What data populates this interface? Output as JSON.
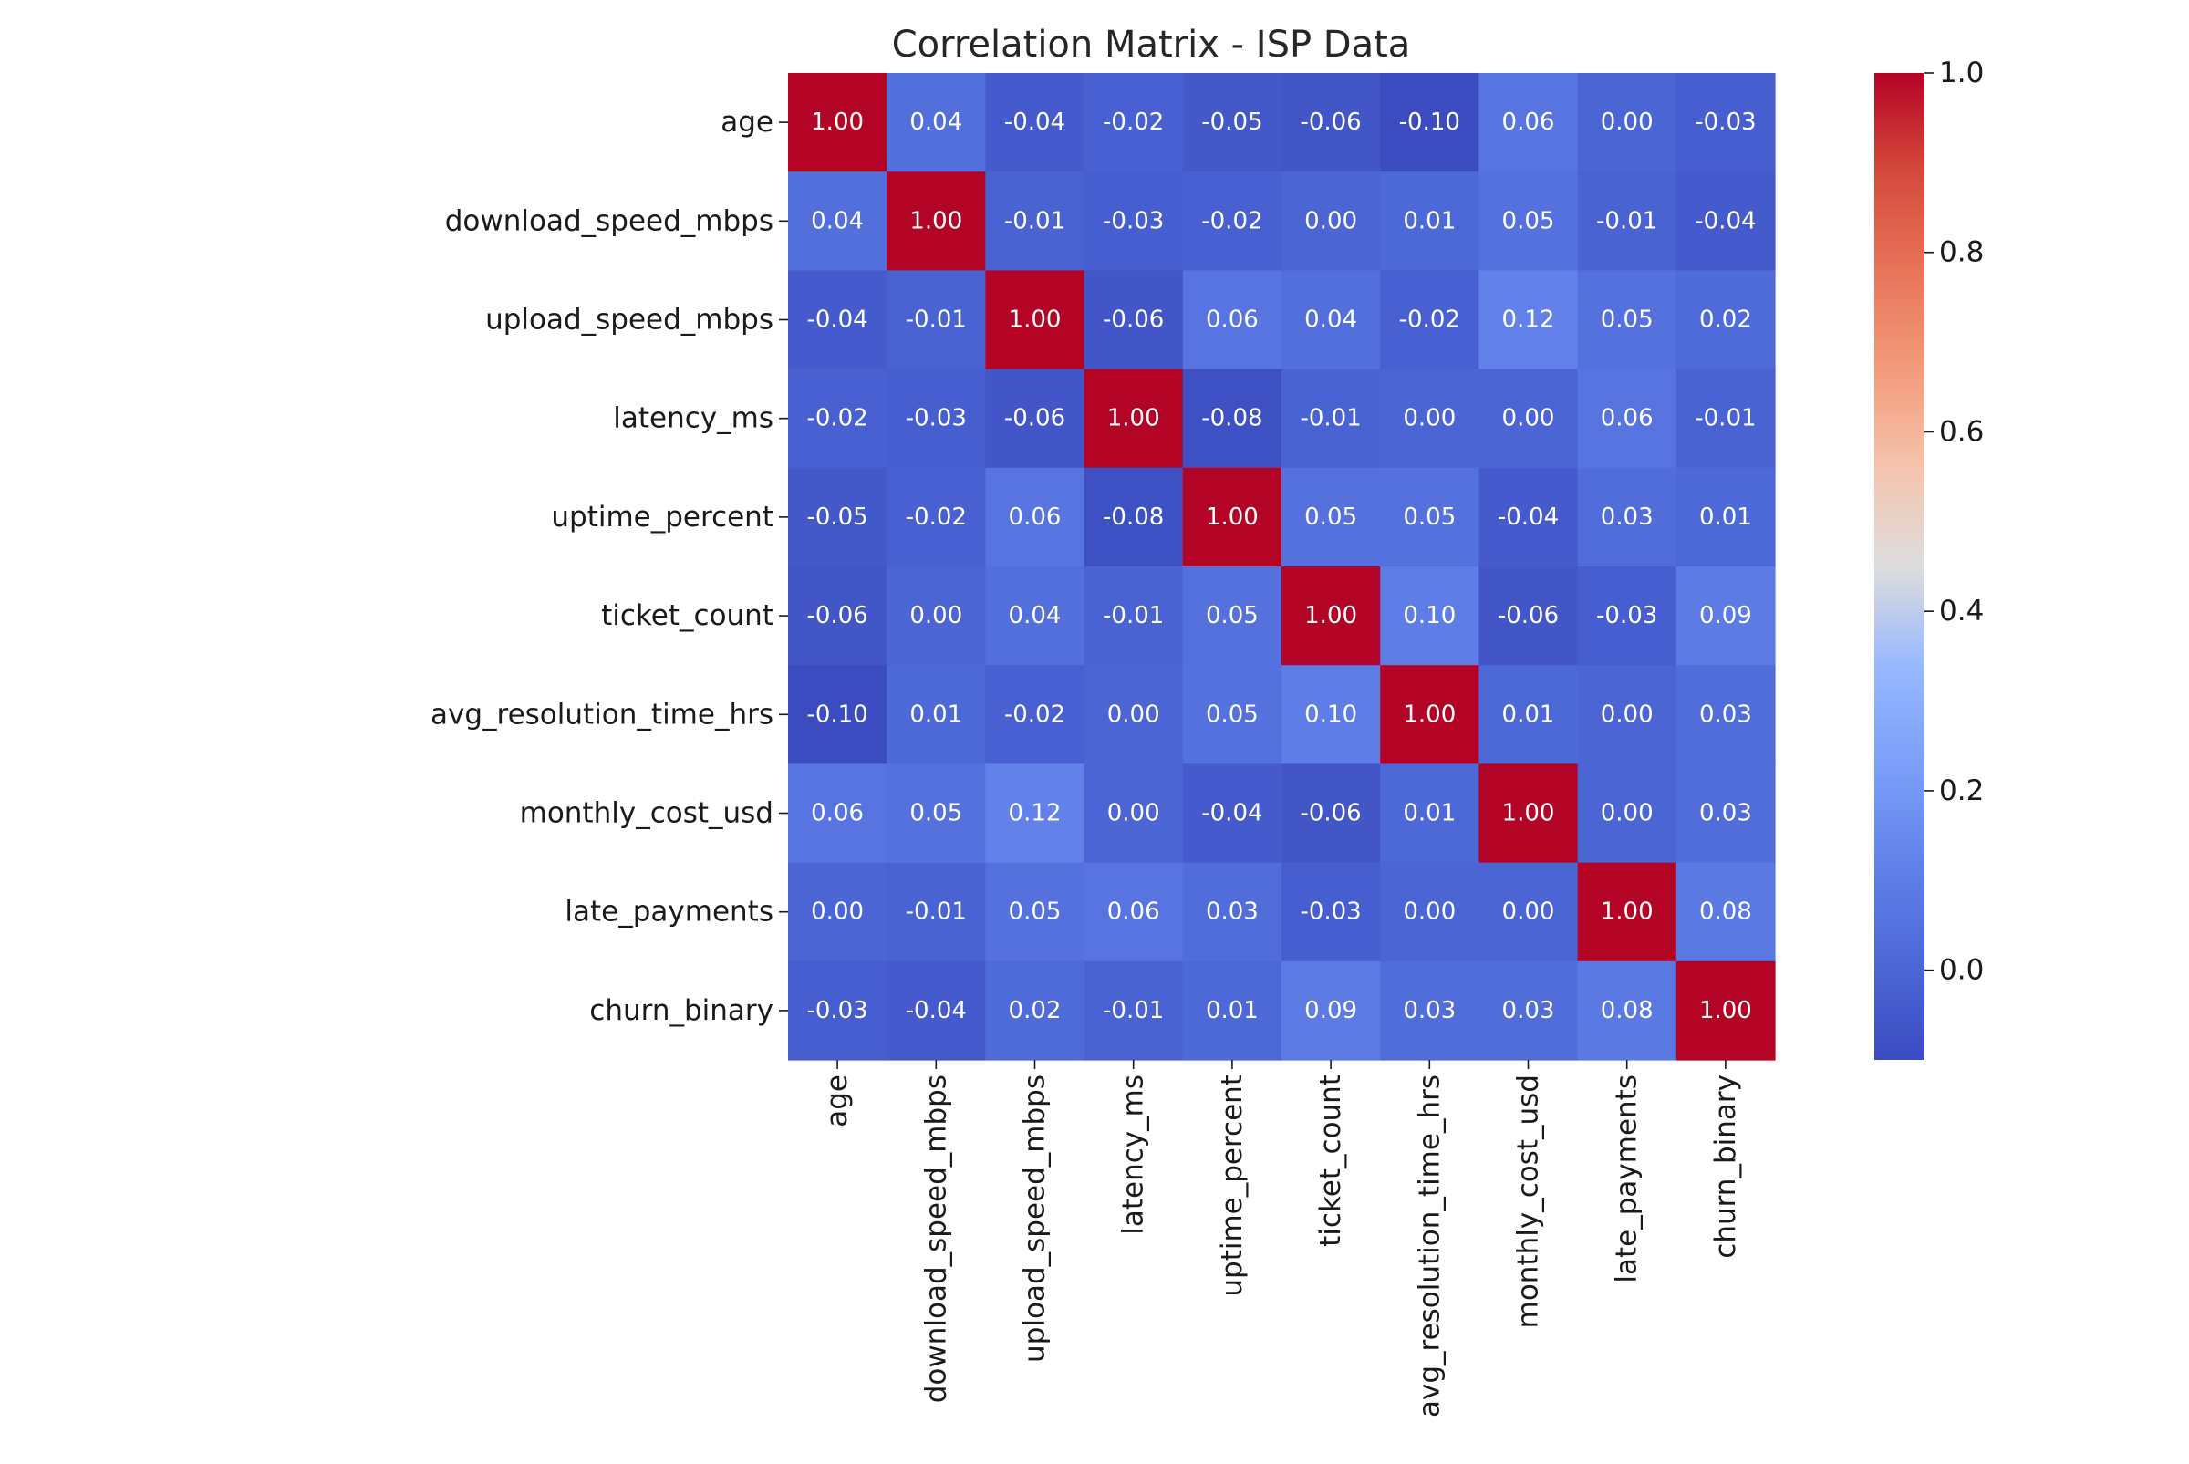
{
  "chart_data": {
    "type": "heatmap",
    "title": "Correlation Matrix - ISP Data",
    "xlabel": "",
    "ylabel": "",
    "row_labels": [
      "age",
      "download_speed_mbps",
      "upload_speed_mbps",
      "latency_ms",
      "uptime_percent",
      "ticket_count",
      "avg_resolution_time_hrs",
      "monthly_cost_usd",
      "late_payments",
      "churn_binary"
    ],
    "col_labels": [
      "age",
      "download_speed_mbps",
      "upload_speed_mbps",
      "latency_ms",
      "uptime_percent",
      "ticket_count",
      "avg_resolution_time_hrs",
      "monthly_cost_usd",
      "late_payments",
      "churn_binary"
    ],
    "values": [
      [
        1.0,
        0.04,
        -0.04,
        -0.02,
        -0.05,
        -0.06,
        -0.1,
        0.06,
        -0.0,
        -0.03
      ],
      [
        0.04,
        1.0,
        -0.01,
        -0.03,
        -0.02,
        -0.0,
        0.01,
        0.05,
        -0.01,
        -0.04
      ],
      [
        -0.04,
        -0.01,
        1.0,
        -0.06,
        0.06,
        0.04,
        -0.02,
        0.12,
        0.05,
        0.02
      ],
      [
        -0.02,
        -0.03,
        -0.06,
        1.0,
        -0.08,
        -0.01,
        -0.0,
        -0.0,
        0.06,
        -0.01
      ],
      [
        -0.05,
        -0.02,
        0.06,
        -0.08,
        1.0,
        0.05,
        0.05,
        -0.04,
        0.03,
        0.01
      ],
      [
        -0.06,
        -0.0,
        0.04,
        -0.01,
        0.05,
        1.0,
        0.1,
        -0.06,
        -0.03,
        0.09
      ],
      [
        -0.1,
        0.01,
        -0.02,
        -0.0,
        0.05,
        0.1,
        1.0,
        0.01,
        -0.0,
        0.03
      ],
      [
        0.06,
        0.05,
        0.12,
        -0.0,
        -0.04,
        -0.06,
        0.01,
        1.0,
        -0.0,
        0.03
      ],
      [
        -0.0,
        -0.01,
        0.05,
        0.06,
        0.03,
        -0.03,
        -0.0,
        -0.0,
        1.0,
        0.08
      ],
      [
        -0.03,
        -0.04,
        0.02,
        -0.01,
        0.01,
        0.09,
        0.03,
        0.03,
        0.08,
        1.0
      ]
    ],
    "annotation_format": "2 decimals",
    "colormap": "coolwarm",
    "color_range": [
      -0.1,
      1.0
    ],
    "colorbar_ticks": [
      0.0,
      0.2,
      0.4,
      0.6,
      0.8,
      1.0
    ],
    "colorbar_tick_labels": [
      "0.0",
      "0.2",
      "0.4",
      "0.6",
      "0.8",
      "1.0"
    ],
    "grid": false,
    "legend": "colorbar-right"
  }
}
